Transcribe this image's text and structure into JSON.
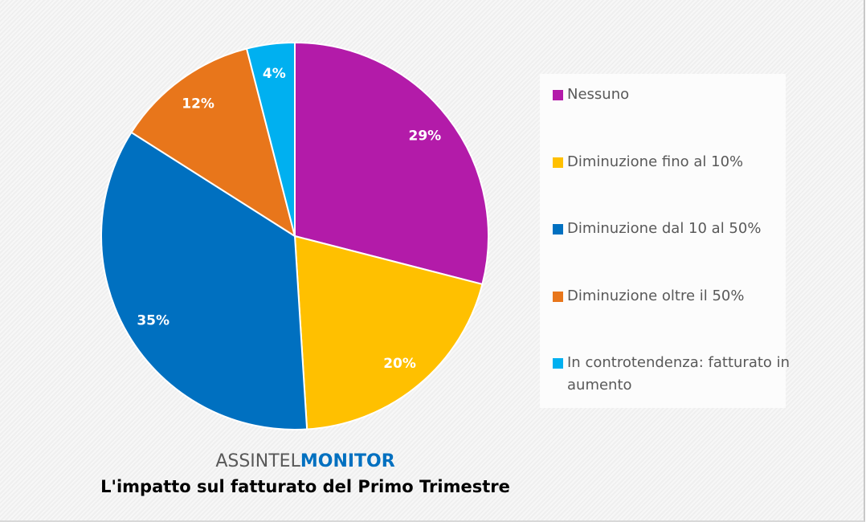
{
  "chart_data": {
    "type": "pie",
    "brand": {
      "prefix": "ASSINTEL",
      "suffix": "MONITOR"
    },
    "title": "L'impatto sul fatturato del Primo Trimestre",
    "start_angle": "top, clockwise",
    "legend_position": "right",
    "slices": [
      {
        "label": "Nessuno",
        "value": 29,
        "data_label": "29%",
        "color": "#b31ba9"
      },
      {
        "label": "Diminuzione fino al 10%",
        "value": 20,
        "data_label": "20%",
        "color": "#ffc000"
      },
      {
        "label": "Diminuzione dal 10 al 50%",
        "value": 35,
        "data_label": "35%",
        "color": "#0070c0"
      },
      {
        "label": "Diminuzione oltre il 50%",
        "value": 12,
        "data_label": "12%",
        "color": "#e8761b"
      },
      {
        "label": "In controtendenza: fatturato in aumento",
        "value": 4,
        "data_label": "4%",
        "color": "#00b0f0"
      }
    ]
  }
}
